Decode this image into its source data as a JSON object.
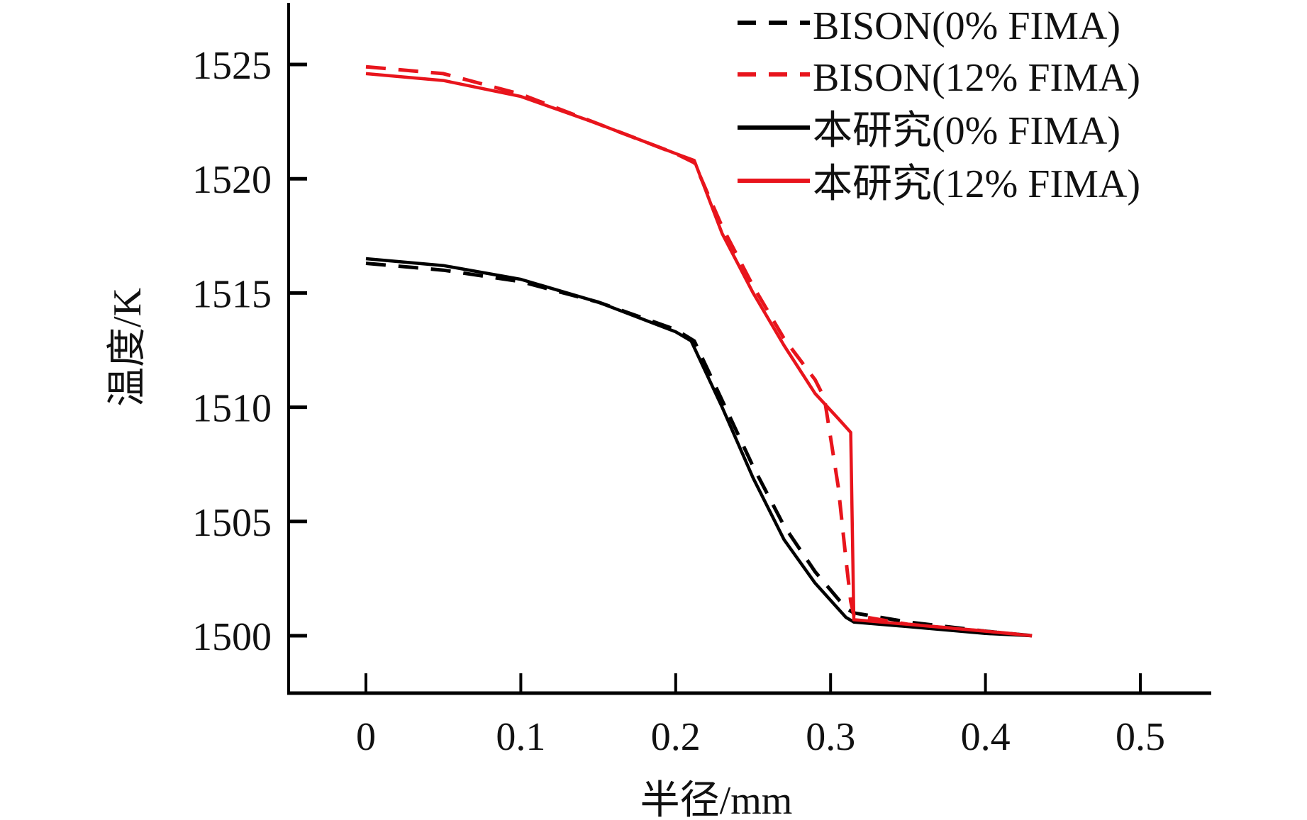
{
  "chart_data": {
    "type": "line",
    "title": "",
    "xlabel": "半径/mm",
    "ylabel": "温度/K",
    "xlim": [
      -0.05,
      0.55
    ],
    "ylim": [
      1497.5,
      1528
    ],
    "x_ticks": [
      0,
      0.1,
      0.2,
      0.3,
      0.4,
      0.5
    ],
    "x_tick_labels": [
      "0",
      "0.1",
      "0.2",
      "0.3",
      "0.4",
      "0.5"
    ],
    "y_ticks": [
      1500,
      1505,
      1510,
      1515,
      1520,
      1525
    ],
    "y_tick_labels": [
      "1500",
      "1505",
      "1510",
      "1515",
      "1520",
      "1525"
    ],
    "grid": false,
    "legend_position": "top-right",
    "series": [
      {
        "name": "BISON(0% FIMA)",
        "color": "#000000",
        "style": "dashed",
        "x": [
          0,
          0.05,
          0.1,
          0.15,
          0.2,
          0.212,
          0.23,
          0.25,
          0.27,
          0.29,
          0.31,
          0.315,
          0.35,
          0.4,
          0.43
        ],
        "y": [
          1516.3,
          1516.0,
          1515.5,
          1514.6,
          1513.4,
          1512.9,
          1510.3,
          1507.4,
          1504.8,
          1502.8,
          1501.2,
          1501.0,
          1500.6,
          1500.2,
          1500.0
        ]
      },
      {
        "name": "BISON(12% FIMA)",
        "color": "#e8141c",
        "style": "dashed",
        "x": [
          0,
          0.05,
          0.1,
          0.15,
          0.2,
          0.212,
          0.23,
          0.25,
          0.27,
          0.29,
          0.296,
          0.305,
          0.31,
          0.313,
          0.315,
          0.35,
          0.4,
          0.43
        ],
        "y": [
          1524.9,
          1524.6,
          1523.7,
          1522.4,
          1521.1,
          1520.7,
          1517.9,
          1515.3,
          1513.0,
          1511.2,
          1510.4,
          1506.5,
          1503.3,
          1501.5,
          1500.9,
          1500.5,
          1500.2,
          1500.0
        ]
      },
      {
        "name": "本研究(0% FIMA)",
        "color": "#000000",
        "style": "solid",
        "x": [
          0,
          0.05,
          0.1,
          0.15,
          0.2,
          0.21,
          0.23,
          0.25,
          0.27,
          0.29,
          0.31,
          0.315,
          0.35,
          0.4,
          0.43
        ],
        "y": [
          1516.5,
          1516.2,
          1515.6,
          1514.6,
          1513.3,
          1512.9,
          1510.0,
          1506.9,
          1504.2,
          1502.3,
          1500.8,
          1500.6,
          1500.4,
          1500.1,
          1500.0
        ]
      },
      {
        "name": "本研究(12% FIMA)",
        "color": "#e8141c",
        "style": "solid",
        "x": [
          0,
          0.05,
          0.1,
          0.15,
          0.2,
          0.212,
          0.23,
          0.25,
          0.27,
          0.29,
          0.305,
          0.313,
          0.315,
          0.35,
          0.4,
          0.43
        ],
        "y": [
          1524.6,
          1524.3,
          1523.6,
          1522.4,
          1521.1,
          1520.8,
          1517.6,
          1515.0,
          1512.7,
          1510.6,
          1509.5,
          1508.9,
          1500.7,
          1500.5,
          1500.2,
          1500.0
        ]
      }
    ]
  }
}
